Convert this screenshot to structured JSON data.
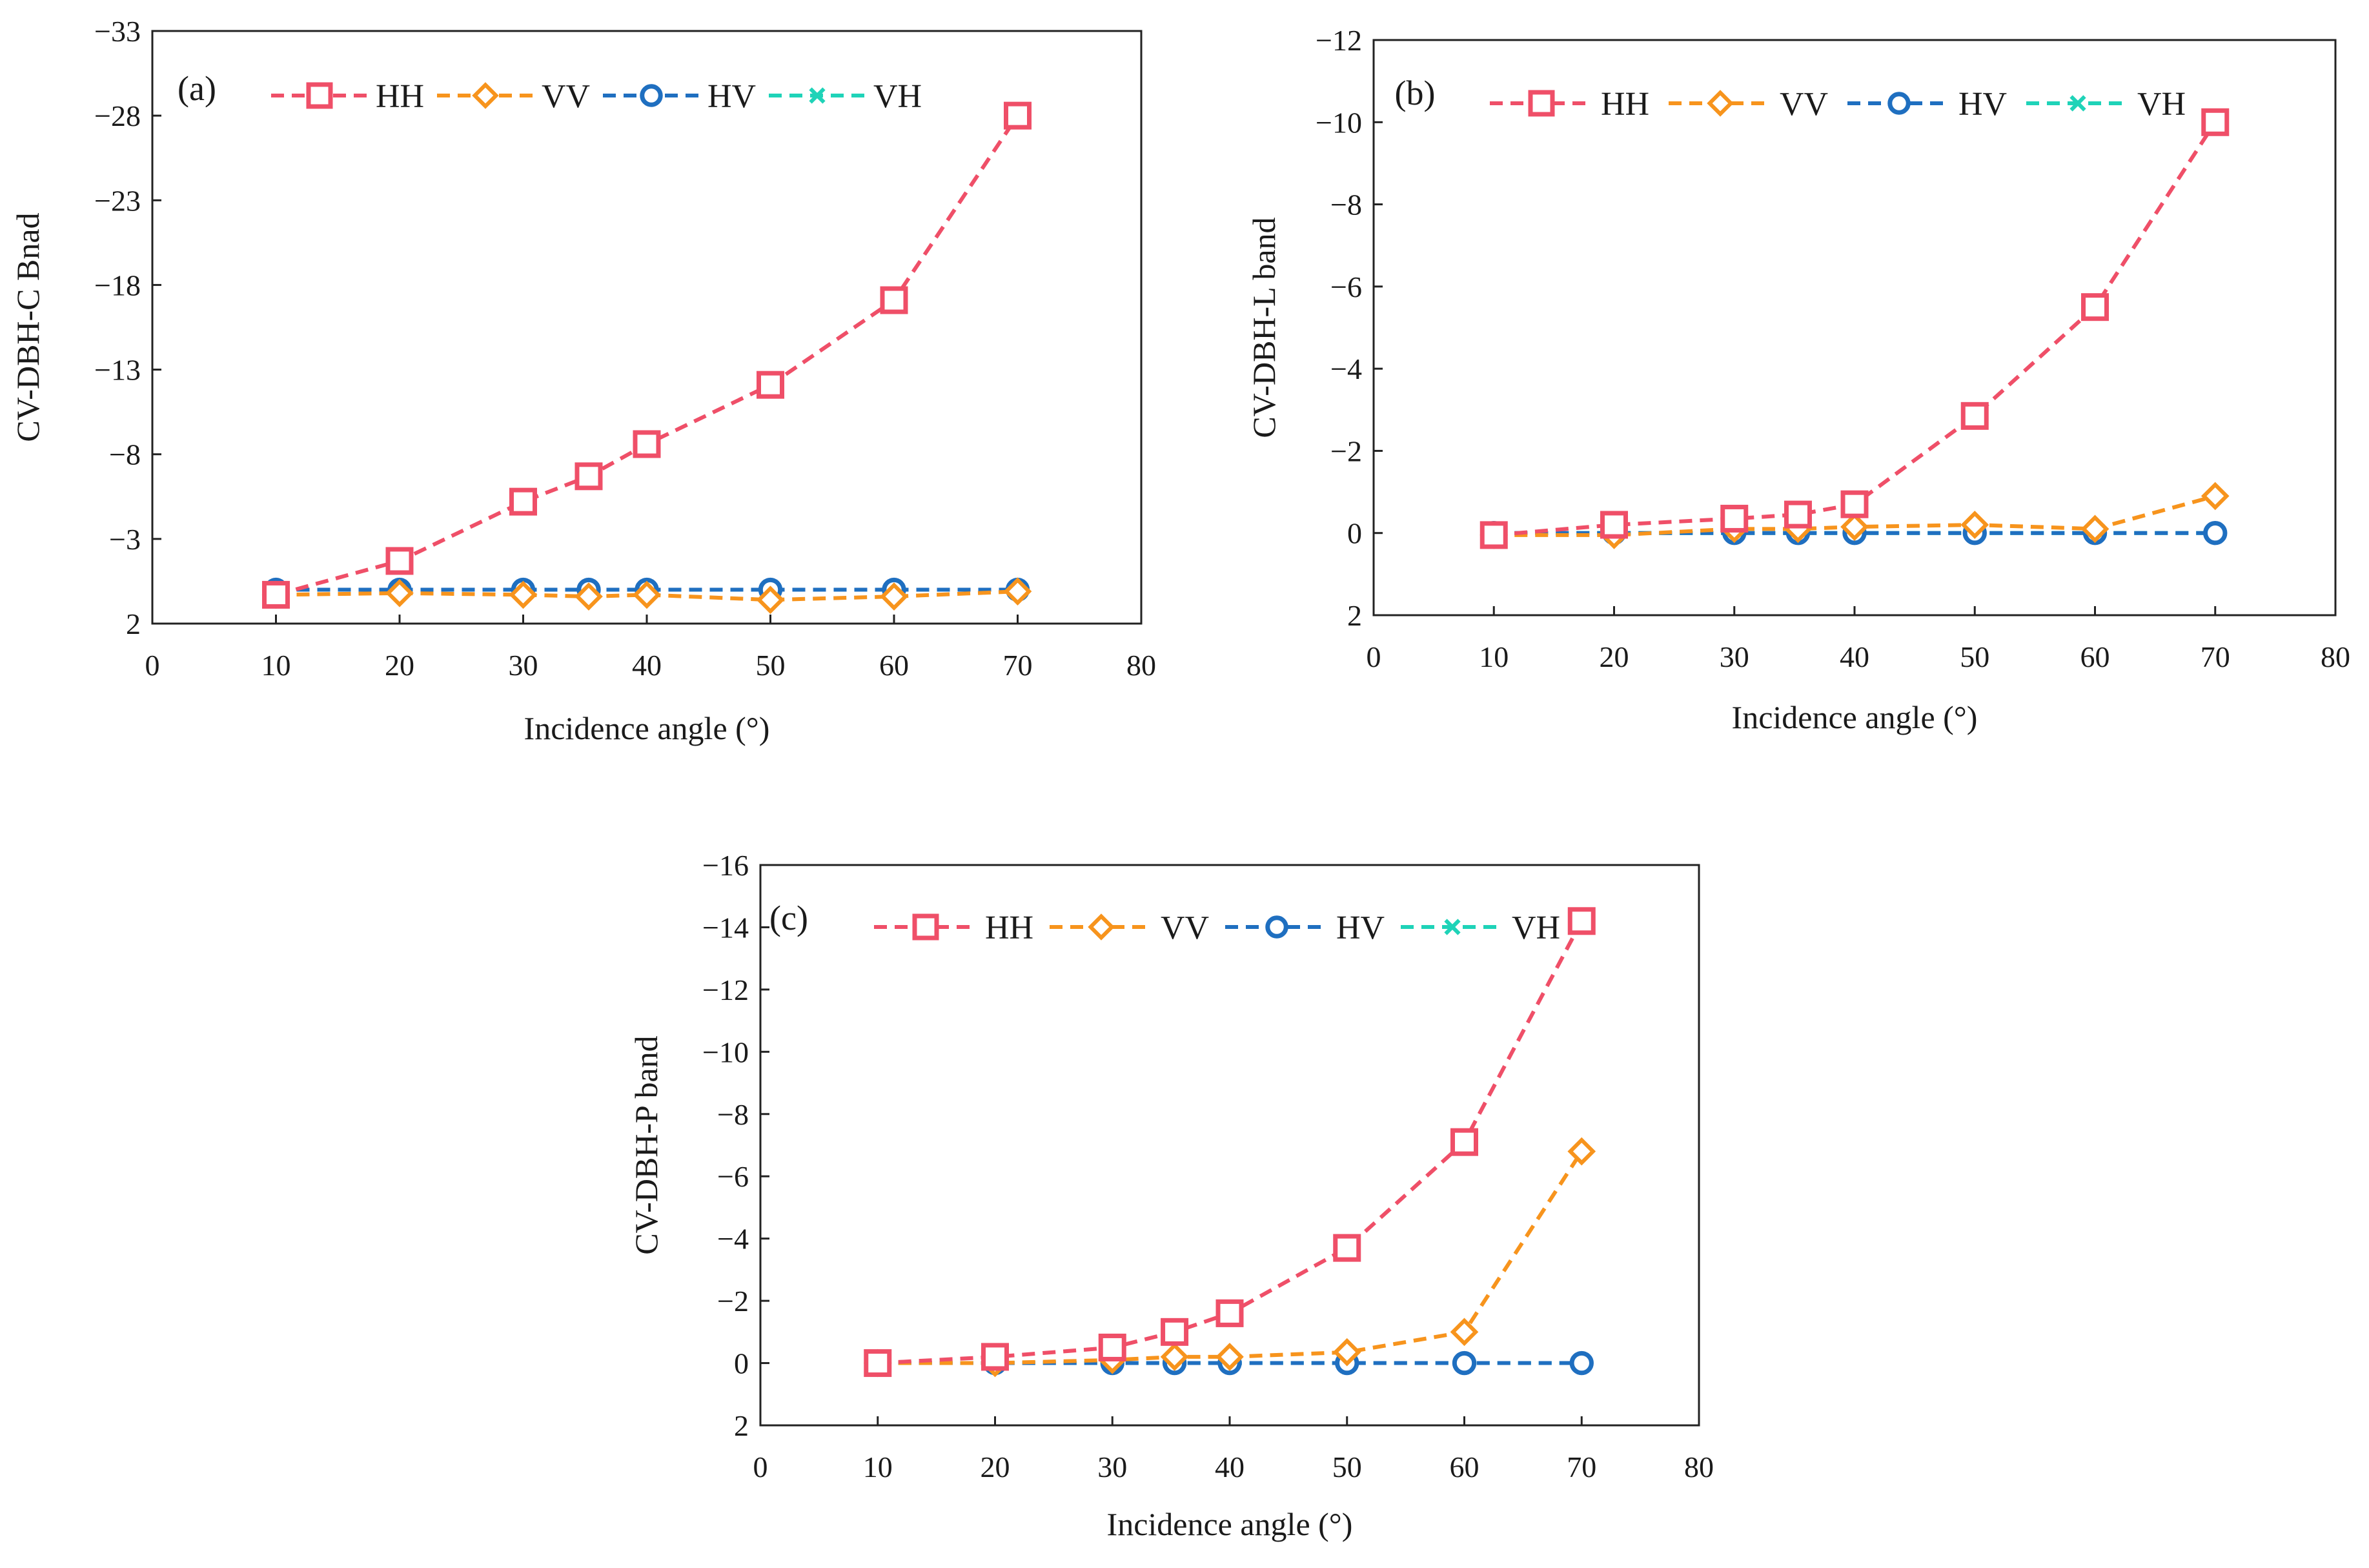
{
  "chart_data": [
    {
      "type": "line",
      "panel_label": "(a)",
      "xlabel": "Incidence angle (°)",
      "ylabel": "CV-DBH-C Bnad",
      "xlim": [
        0,
        80
      ],
      "ylim": [
        2,
        -33
      ],
      "x_ticks": [
        "0",
        "10",
        "20",
        "30",
        "40",
        "50",
        "60",
        "70",
        "80"
      ],
      "y_ticks": [
        "2",
        "−3",
        "−8",
        "−13",
        "−18",
        "−23",
        "−28",
        "−33"
      ],
      "x": [
        10,
        20,
        30,
        35.3,
        40,
        50,
        60,
        70
      ],
      "legend_position": "top-left",
      "series": [
        {
          "name": "HH",
          "values": [
            0.3,
            -1.7,
            -5.2,
            -6.7,
            -8.6,
            -12.1,
            -17.1,
            -28.0
          ]
        },
        {
          "name": "VV",
          "values": [
            0.3,
            0.2,
            0.3,
            0.4,
            0.3,
            0.6,
            0.4,
            0.1
          ]
        },
        {
          "name": "HV",
          "values": [
            0.0,
            0.0,
            0.0,
            0.0,
            0.0,
            0.0,
            0.0,
            0.0
          ]
        },
        {
          "name": "VH",
          "values": [
            0.0,
            0.0,
            0.0,
            0.0,
            0.0,
            0.0,
            0.0,
            0.0
          ]
        }
      ]
    },
    {
      "type": "line",
      "panel_label": "(b)",
      "xlabel": "Incidence angle (°)",
      "ylabel": "CV-DBH-L band",
      "xlim": [
        0,
        80
      ],
      "ylim": [
        2,
        -12
      ],
      "x_ticks": [
        "0",
        "10",
        "20",
        "30",
        "40",
        "50",
        "60",
        "70",
        "80"
      ],
      "y_ticks": [
        "2",
        "0",
        "−2",
        "−4",
        "−6",
        "−8",
        "−10",
        "−12"
      ],
      "x": [
        10,
        20,
        30,
        35.3,
        40,
        50,
        60,
        70
      ],
      "legend_position": "top-left",
      "series": [
        {
          "name": "HH",
          "values": [
            0.05,
            -0.2,
            -0.35,
            -0.45,
            -0.7,
            -2.85,
            -5.5,
            -10.0
          ]
        },
        {
          "name": "VV",
          "values": [
            0.05,
            0.05,
            -0.1,
            -0.1,
            -0.15,
            -0.2,
            -0.1,
            -0.9
          ]
        },
        {
          "name": "HV",
          "values": [
            0.0,
            0.0,
            0.0,
            0.0,
            0.0,
            0.0,
            0.0,
            0.0
          ]
        },
        {
          "name": "VH",
          "values": [
            0.0,
            0.0,
            0.0,
            0.0,
            0.0,
            0.0,
            0.0,
            0.0
          ]
        }
      ]
    },
    {
      "type": "line",
      "panel_label": "(c)",
      "xlabel": "Incidence angle (°)",
      "ylabel": "CV-DBH-P band",
      "xlim": [
        0,
        80
      ],
      "ylim": [
        2,
        -16
      ],
      "x_ticks": [
        "0",
        "10",
        "20",
        "30",
        "40",
        "50",
        "60",
        "70",
        "80"
      ],
      "y_ticks": [
        "2",
        "0",
        "−2",
        "−4",
        "−6",
        "−8",
        "−10",
        "−12",
        "−14",
        "−16"
      ],
      "x": [
        10,
        20,
        30,
        35.3,
        40,
        50,
        60,
        70
      ],
      "legend_position": "top-left",
      "series": [
        {
          "name": "HH",
          "values": [
            0.0,
            -0.2,
            -0.5,
            -1.0,
            -1.6,
            -3.7,
            -7.1,
            -14.2
          ]
        },
        {
          "name": "VV",
          "values": [
            0.0,
            0.0,
            -0.1,
            -0.2,
            -0.2,
            -0.35,
            -1.0,
            -6.8
          ]
        },
        {
          "name": "HV",
          "values": [
            0.0,
            0.0,
            0.0,
            0.0,
            0.0,
            0.0,
            0.0,
            0.0
          ]
        },
        {
          "name": "VH",
          "values": [
            0.0,
            0.0,
            0.0,
            0.0,
            0.0,
            0.0,
            0.0,
            0.0
          ]
        }
      ]
    }
  ],
  "series_colors": {
    "HH": "#ef4f68",
    "VV": "#f7941d",
    "HV": "#1f6fc0",
    "VH": "#1fd3b8"
  }
}
